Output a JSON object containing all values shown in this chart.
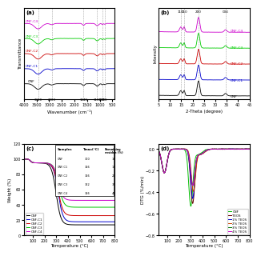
{
  "panel_a": {
    "title": "(a)",
    "xlabel": "Wavenumber (cm⁻¹)",
    "ylabel": "Transmittance",
    "xlim": [
      4000,
      400
    ],
    "vlines": [
      3440,
      2900,
      1640,
      1100,
      800,
      897
    ],
    "vline_labels": [
      "3440",
      "2900",
      "1640",
      "1100",
      "800",
      "897"
    ],
    "samples": [
      "CNF-C4",
      "CNF-C3",
      "CNF-C2",
      "CNF-C1",
      "CNF"
    ],
    "colors": [
      "#cc00cc",
      "#00cc00",
      "#cc0000",
      "#0000cc",
      "#000000"
    ],
    "offsets": [
      4.0,
      3.0,
      2.0,
      1.0,
      0.0
    ]
  },
  "panel_b": {
    "title": "(b)",
    "xlabel": "2-Theta (degree)",
    "ylabel": "Intensity",
    "xlim": [
      5,
      45
    ],
    "vlines": [
      14.8,
      16.3,
      22.6,
      34.5
    ],
    "peak_labels": [
      "110",
      "110",
      "200",
      "004"
    ],
    "samples": [
      "CNF-C4",
      "CNF-C3",
      "CNF-C2",
      "CNF-C1",
      "CNF"
    ],
    "colors": [
      "#cc00cc",
      "#00cc00",
      "#cc0000",
      "#0000cc",
      "#000000"
    ],
    "offsets": [
      4.0,
      3.0,
      2.0,
      1.0,
      0.0
    ]
  },
  "panel_c": {
    "title": "(c)",
    "xlabel": "Temperature (°C)",
    "ylabel": "Weight (%)",
    "xlim": [
      25,
      800
    ],
    "ylim": [
      0,
      120
    ],
    "samples": [
      "CNF",
      "CNF-C1",
      "CNF-C2",
      "CNF-C3",
      "CNF-C4"
    ],
    "colors": [
      "#000000",
      "#0000cc",
      "#cc0000",
      "#00cc00",
      "#cc00cc"
    ],
    "Tmax_list": [
      300,
      316,
      316,
      322,
      316
    ],
    "residue_list": [
      14,
      18,
      26,
      37,
      46
    ],
    "table_rows": [
      [
        "CNF",
        "300",
        "14"
      ],
      [
        "CNF-C1",
        "316",
        "18"
      ],
      [
        "CNF-C2",
        "316",
        "26"
      ],
      [
        "CNF-C3",
        "322",
        "37"
      ],
      [
        "CNF-C4",
        "316",
        "46"
      ]
    ]
  },
  "panel_d": {
    "title": "(d)",
    "xlabel": "Temperature (°C)",
    "ylabel": "DTG (%/min)",
    "xlim": [
      25,
      800
    ],
    "ylim": [
      -0.8,
      0.05
    ],
    "samples": [
      "CNF",
      "TEOS",
      "1% TEOS",
      "2% TEOS",
      "3% TEOS",
      "4% TEOS"
    ],
    "colors": [
      "#00bb00",
      "#660000",
      "#0000cc",
      "#cc4400",
      "#007700",
      "#cc00cc"
    ],
    "Tmax_list": [
      300,
      316,
      316,
      322,
      316,
      316
    ],
    "residue_list": [
      14,
      18,
      26,
      37,
      46,
      46
    ]
  }
}
